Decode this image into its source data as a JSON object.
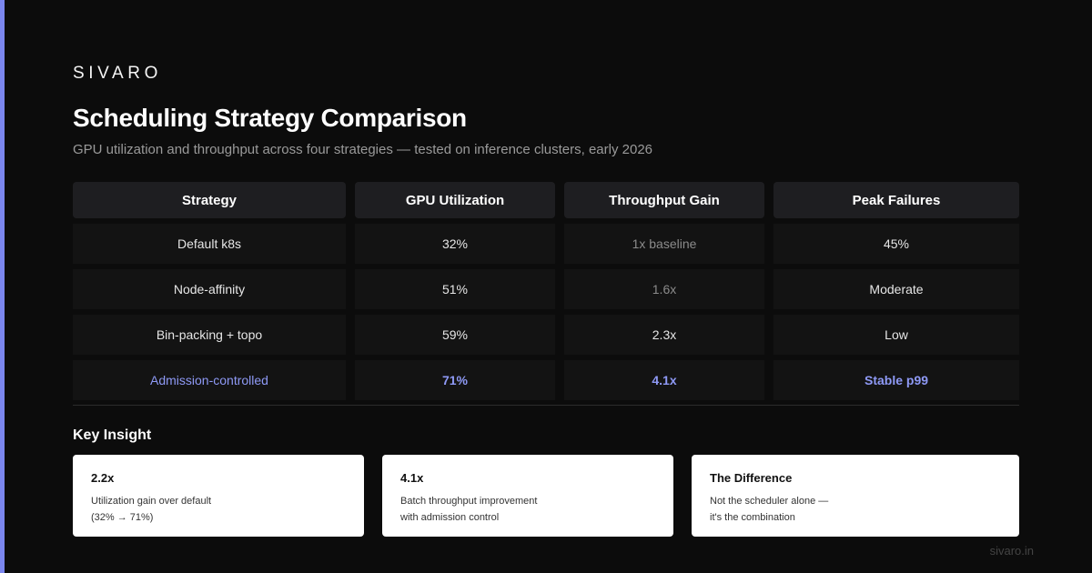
{
  "brand": "SIVARO",
  "title": "Scheduling Strategy Comparison",
  "subtitle": "GPU utilization and throughput across four strategies — tested on inference clusters, early 2026",
  "table": {
    "headers": [
      "Strategy",
      "GPU Utilization",
      "Throughput Gain",
      "Peak Failures"
    ],
    "rows": [
      [
        "Default k8s",
        "32%",
        "1x baseline",
        "45%"
      ],
      [
        "Node-affinity",
        "51%",
        "1.6x",
        "Moderate"
      ],
      [
        "Bin-packing + topo",
        "59%",
        "2.3x",
        "Low"
      ],
      [
        "Admission-controlled",
        "71%",
        "4.1x",
        "Stable p99"
      ]
    ]
  },
  "insight": {
    "heading": "Key Insight",
    "cards": [
      {
        "value": "2.2x",
        "line1": "Utilization gain over default",
        "line2": "(32% → 71%)"
      },
      {
        "value": "4.1x",
        "line1": "Batch throughput improvement",
        "line2": "with admission control"
      },
      {
        "value": "The Difference",
        "line1": "Not the scheduler alone —",
        "line2": "it's the combination"
      }
    ]
  },
  "footer": "sivaro.in",
  "colors": {
    "accent": "#7b86ee",
    "highlight": "#8e99f5",
    "background": "#0c0c0c"
  }
}
